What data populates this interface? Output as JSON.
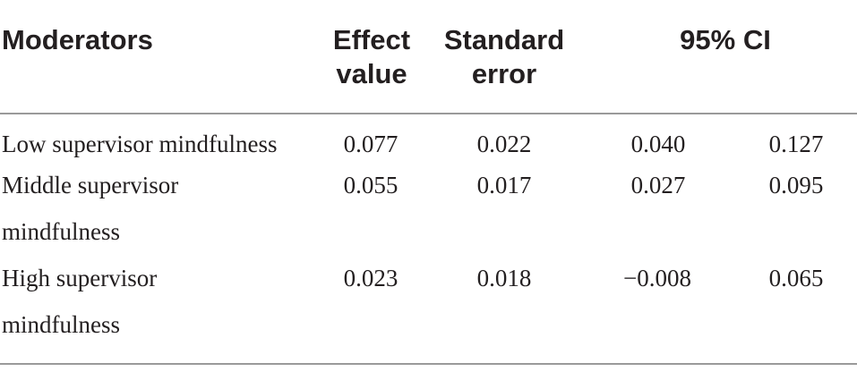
{
  "table": {
    "headers": {
      "moderators": "Moderators",
      "effect_value": [
        "Effect",
        "value"
      ],
      "standard_error": [
        "Standard",
        "error"
      ],
      "ci": "95% CI"
    },
    "rows": [
      {
        "label_lines": [
          "Low supervisor mindfulness"
        ],
        "effect": "0.077",
        "se": "0.022",
        "ci_low": "0.040",
        "ci_high": "0.127"
      },
      {
        "label_lines": [
          "Middle supervisor",
          "mindfulness"
        ],
        "effect": "0.055",
        "se": "0.017",
        "ci_low": "0.027",
        "ci_high": "0.095"
      },
      {
        "label_lines": [
          "High supervisor",
          "mindfulness"
        ],
        "effect": "0.023",
        "se": "0.018",
        "ci_low": "−0.008",
        "ci_high": "0.065"
      }
    ]
  }
}
